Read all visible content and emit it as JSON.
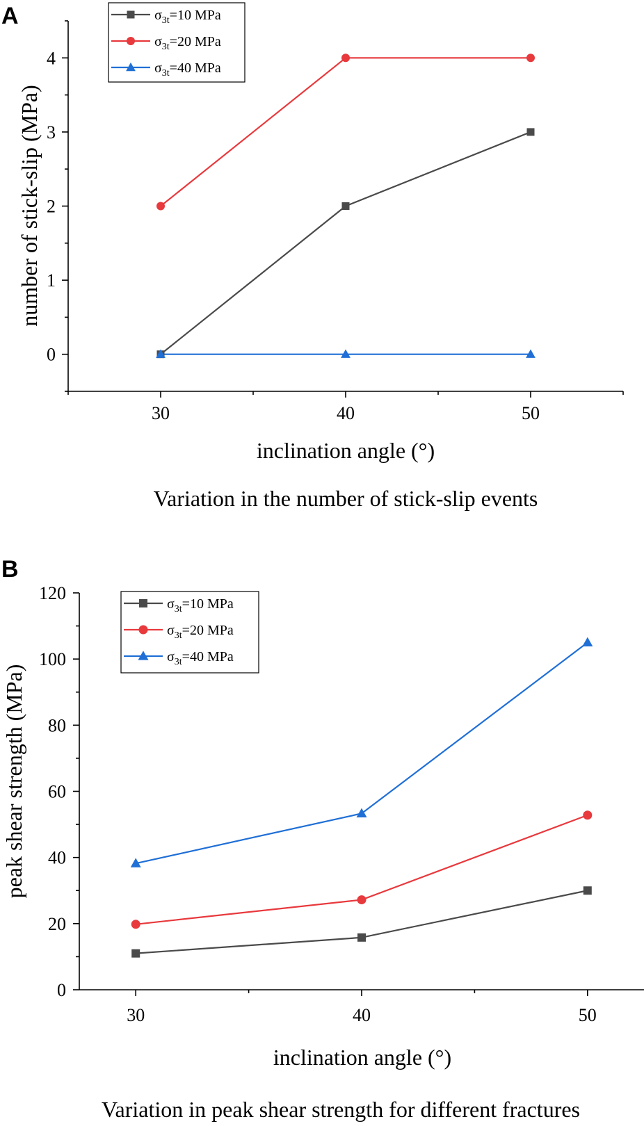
{
  "chart_data": [
    {
      "type": "line",
      "panel_label": "A",
      "caption": "Variation in the number of stick-slip events",
      "xlabel": "inclination angle (°)",
      "ylabel": "number of stick-slip (MPa)",
      "x": [
        30,
        40,
        50
      ],
      "xlim": [
        25,
        55
      ],
      "ylim": [
        -0.5,
        4.5
      ],
      "xticks": [
        30,
        40,
        50
      ],
      "yticks": [
        0,
        1,
        2,
        3,
        4
      ],
      "legend_position": "top-left",
      "series": [
        {
          "name_prefix": "σ",
          "name_sub": "3t",
          "name_suffix": "=10 MPa",
          "color": "#4a4a4a",
          "marker": "square",
          "values": [
            0,
            2,
            3
          ]
        },
        {
          "name_prefix": "σ",
          "name_sub": "3t",
          "name_suffix": "=20 MPa",
          "color": "#e8393d",
          "marker": "circle",
          "values": [
            2,
            4,
            4
          ]
        },
        {
          "name_prefix": "σ",
          "name_sub": "3t",
          "name_suffix": "=40 MPa",
          "color": "#1f6fd6",
          "marker": "triangle",
          "values": [
            0,
            0,
            0
          ]
        }
      ]
    },
    {
      "type": "line",
      "panel_label": "B",
      "caption": "Variation in peak shear strength for different fractures",
      "xlabel": "inclination angle (°)",
      "ylabel": "peak shear strength (MPa)",
      "x": [
        30,
        40,
        50
      ],
      "xlim": [
        27.5,
        52.5
      ],
      "ylim": [
        0,
        120
      ],
      "xticks": [
        30,
        40,
        50
      ],
      "yticks": [
        0,
        20,
        40,
        60,
        80,
        100,
        120
      ],
      "legend_position": "top-left",
      "series": [
        {
          "name_prefix": "σ",
          "name_sub": "3t",
          "name_suffix": "=10 MPa",
          "color": "#4a4a4a",
          "marker": "square",
          "values": [
            11,
            15.8,
            30
          ]
        },
        {
          "name_prefix": "σ",
          "name_sub": "3t",
          "name_suffix": "=20 MPa",
          "color": "#e8393d",
          "marker": "circle",
          "values": [
            19.8,
            27.2,
            52.8
          ]
        },
        {
          "name_prefix": "σ",
          "name_sub": "3t",
          "name_suffix": "=40 MPa",
          "color": "#1f6fd6",
          "marker": "triangle",
          "values": [
            38.2,
            53.3,
            105
          ]
        }
      ]
    }
  ]
}
